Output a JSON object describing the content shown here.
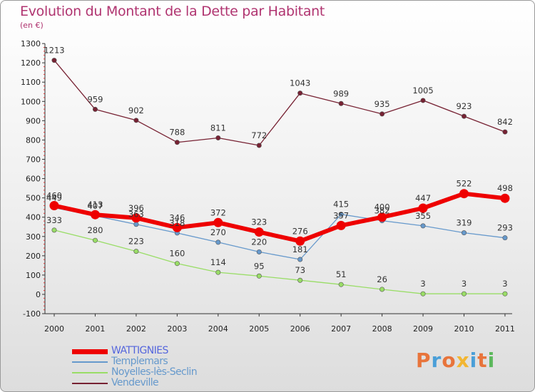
{
  "header": {
    "title": "Evolution du Montant de la Dette par Habitant",
    "subtitle": "(en €)"
  },
  "logo": {
    "text": "Proxiti",
    "colors": [
      "#e8743b",
      "#4a9fd8",
      "#e8743b",
      "#f2b632",
      "#4a9fd8",
      "#e8743b",
      "#5cb85c"
    ]
  },
  "chart_data": {
    "type": "line",
    "x": [
      "2000",
      "2001",
      "2002",
      "2003",
      "2004",
      "2005",
      "2006",
      "2007",
      "2008",
      "2009",
      "2010",
      "2011"
    ],
    "ylim": [
      -100,
      1300
    ],
    "yticks": [
      -100,
      0,
      100,
      200,
      300,
      400,
      500,
      600,
      700,
      800,
      900,
      1000,
      1100,
      1200,
      1300
    ],
    "grid": false,
    "legend": "bottom-left",
    "series": [
      {
        "name": "WATTIGNIES",
        "color": "#ee0000",
        "legend_text_color": "#5566dd",
        "values": [
          460,
          413,
          396,
          346,
          372,
          323,
          276,
          357,
          400,
          447,
          522,
          498
        ],
        "labels": [
          "460",
          "413",
          "396",
          "346",
          "372",
          "323",
          "276",
          "357",
          "400",
          "447",
          "522",
          "498"
        ]
      },
      {
        "name": "Templemars",
        "color": "#6699cc",
        "legend_text_color": "#6699cc",
        "values": [
          449,
          407,
          363,
          318,
          270,
          220,
          181,
          415,
          382,
          355,
          319,
          293
        ],
        "labels": [
          "449",
          "407",
          "363",
          "318",
          "270",
          "220",
          "181",
          "415",
          "382",
          "355",
          "319",
          "293"
        ]
      },
      {
        "name": "Noyelles-lès-Seclin",
        "color": "#99dd66",
        "legend_text_color": "#6699cc",
        "values": [
          333,
          280,
          223,
          160,
          114,
          95,
          73,
          51,
          26,
          3,
          3,
          3
        ],
        "labels": [
          "333",
          "280",
          "223",
          "160",
          "114",
          "95",
          "73",
          "51",
          "26",
          "3",
          "3",
          "3"
        ]
      },
      {
        "name": "Vendeville",
        "color": "#772233",
        "legend_text_color": "#6699cc",
        "values": [
          1213,
          959,
          902,
          788,
          811,
          772,
          1043,
          989,
          935,
          1005,
          923,
          842
        ],
        "labels": [
          "1213",
          "959",
          "902",
          "788",
          "811",
          "772",
          "1043",
          "989",
          "935",
          "1005",
          "923",
          "842"
        ]
      }
    ]
  }
}
